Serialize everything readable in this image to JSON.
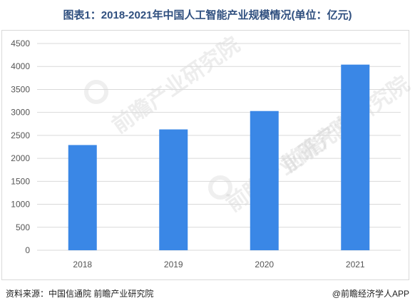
{
  "title": "图表1：2018-2021年中国人工智能产业规模情况(单位：亿元)",
  "watermark_text": "前瞻产业研究院",
  "source_text": "资料来源：中国信通院 前瞻产业研究院",
  "brand_text": "@前瞻经济学人APP",
  "colors": {
    "bar": "#3a87e6",
    "grid": "#d9d9d9",
    "title": "#2f4f7f",
    "tick": "#555555"
  },
  "chart_data": {
    "type": "bar",
    "title": "图表1：2018-2021年中国人工智能产业规模情况(单位：亿元)",
    "xlabel": "",
    "ylabel": "",
    "categories": [
      "2018",
      "2019",
      "2020",
      "2021"
    ],
    "values": [
      2290,
      2630,
      3030,
      4040
    ],
    "ylim": [
      0,
      4500
    ],
    "yticks": [
      0,
      500,
      1000,
      1500,
      2000,
      2500,
      3000,
      3500,
      4000,
      4500
    ],
    "grid": true,
    "legend": "none"
  }
}
